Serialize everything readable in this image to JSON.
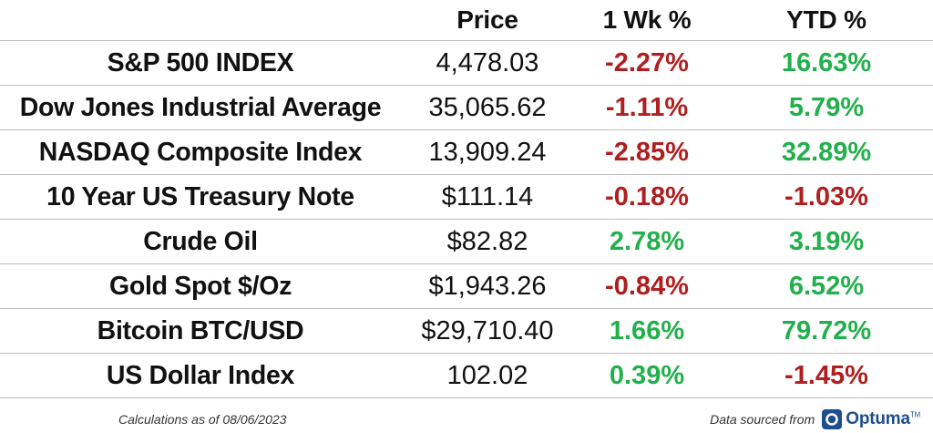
{
  "headers": {
    "name": "",
    "price": "Price",
    "week": "1 Wk %",
    "ytd": "YTD %"
  },
  "rows": [
    {
      "name": "S&P 500 INDEX",
      "price": "4,478.03",
      "week": "-2.27%",
      "week_dir": "neg",
      "ytd": "16.63%",
      "ytd_dir": "pos"
    },
    {
      "name": "Dow Jones Industrial Average",
      "price": "35,065.62",
      "week": "-1.11%",
      "week_dir": "neg",
      "ytd": "5.79%",
      "ytd_dir": "pos"
    },
    {
      "name": "NASDAQ Composite Index",
      "price": "13,909.24",
      "week": "-2.85%",
      "week_dir": "neg",
      "ytd": "32.89%",
      "ytd_dir": "pos"
    },
    {
      "name": "10 Year US Treasury Note",
      "price": "$111.14",
      "week": "-0.18%",
      "week_dir": "neg",
      "ytd": "-1.03%",
      "ytd_dir": "neg"
    },
    {
      "name": "Crude Oil",
      "price": "$82.82",
      "week": "2.78%",
      "week_dir": "pos",
      "ytd": "3.19%",
      "ytd_dir": "pos"
    },
    {
      "name": "Gold Spot $/Oz",
      "price": "$1,943.26",
      "week": "-0.84%",
      "week_dir": "neg",
      "ytd": "6.52%",
      "ytd_dir": "pos"
    },
    {
      "name": "Bitcoin BTC/USD",
      "price": "$29,710.40",
      "week": "1.66%",
      "week_dir": "pos",
      "ytd": "79.72%",
      "ytd_dir": "pos"
    },
    {
      "name": "US Dollar Index",
      "price": "102.02",
      "week": "0.39%",
      "week_dir": "pos",
      "ytd": "-1.45%",
      "ytd_dir": "neg"
    }
  ],
  "footer": {
    "calculations": "Calculations as of 08/06/2023",
    "source": "Data sourced from",
    "logo_text": "Optuma",
    "logo_mark": "TM"
  },
  "colors": {
    "negative": "#b01e1e",
    "positive": "#21b04b",
    "brand": "#1f4e8c",
    "rule": "#bdbdbd"
  },
  "icons": {
    "logo": "optuma-logo-icon"
  }
}
